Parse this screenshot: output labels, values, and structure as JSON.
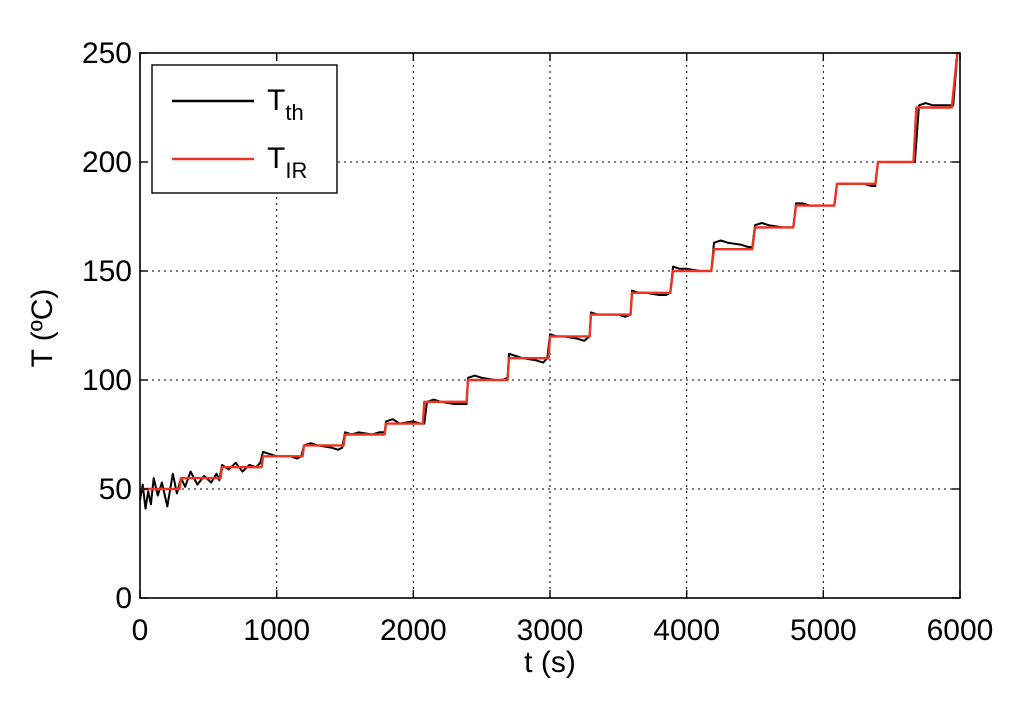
{
  "chart_data": {
    "type": "line",
    "title": "",
    "xlabel": "t (s)",
    "ylabel": "T (ºC)",
    "xlim": [
      0,
      6000
    ],
    "ylim": [
      0,
      250
    ],
    "x_ticks": [
      0,
      1000,
      2000,
      3000,
      4000,
      5000,
      6000
    ],
    "y_ticks": [
      0,
      50,
      100,
      150,
      200,
      250
    ],
    "x_tick_labels": [
      "0",
      "1000",
      "2000",
      "3000",
      "4000",
      "5000",
      "6000"
    ],
    "y_tick_labels": [
      "0",
      "50",
      "100",
      "150",
      "200",
      "250"
    ],
    "grid": true,
    "legend_position": "top-left",
    "series": [
      {
        "name": "Tth",
        "legend_main": "T",
        "legend_sub": "th",
        "color": "#000000",
        "x": [
          0,
          20,
          40,
          60,
          80,
          100,
          130,
          160,
          200,
          240,
          270,
          300,
          330,
          370,
          420,
          470,
          520,
          560,
          580,
          600,
          650,
          700,
          750,
          800,
          850,
          880,
          900,
          950,
          1000,
          1100,
          1150,
          1180,
          1200,
          1250,
          1300,
          1400,
          1450,
          1480,
          1500,
          1550,
          1600,
          1700,
          1750,
          1790,
          1800,
          1850,
          1900,
          2000,
          2050,
          2080,
          2100,
          2150,
          2200,
          2300,
          2350,
          2390,
          2400,
          2450,
          2500,
          2600,
          2650,
          2690,
          2700,
          2750,
          2800,
          2900,
          2950,
          2980,
          3000,
          3050,
          3100,
          3200,
          3250,
          3290,
          3300,
          3350,
          3400,
          3500,
          3550,
          3590,
          3600,
          3650,
          3700,
          3800,
          3850,
          3880,
          3900,
          3950,
          4000,
          4100,
          4150,
          4180,
          4200,
          4250,
          4300,
          4400,
          4450,
          4480,
          4500,
          4550,
          4600,
          4700,
          4750,
          4780,
          4800,
          4850,
          4900,
          5000,
          5050,
          5080,
          5100,
          5150,
          5200,
          5300,
          5350,
          5380,
          5400,
          5450,
          5500,
          5600,
          5650,
          5670,
          5700,
          5750,
          5800,
          5900,
          5920,
          5950,
          5980
        ],
        "y": [
          45,
          52,
          41,
          49,
          43,
          55,
          47,
          53,
          42,
          57,
          48,
          55,
          51,
          58,
          52,
          56,
          53,
          57,
          54,
          61,
          59,
          62,
          58,
          61,
          60,
          62,
          67,
          66,
          65,
          65,
          64,
          65,
          70,
          71,
          70,
          69,
          68,
          69,
          76,
          75,
          76,
          75,
          76,
          76,
          81,
          82,
          80,
          81,
          80,
          80,
          90,
          91,
          90,
          89,
          89,
          89,
          101,
          102,
          101,
          100,
          100,
          101,
          112,
          111,
          110,
          109,
          108,
          110,
          121,
          120,
          120,
          119,
          118,
          120,
          131,
          130,
          130,
          130,
          129,
          130,
          141,
          140,
          140,
          139,
          139,
          140,
          152,
          151,
          151,
          150,
          150,
          150,
          163,
          164,
          163,
          162,
          161,
          161,
          171,
          172,
          171,
          170,
          170,
          170,
          181,
          181,
          180,
          180,
          180,
          180,
          190,
          190,
          190,
          190,
          189,
          189,
          200,
          200,
          200,
          200,
          200,
          200,
          226,
          227,
          226,
          226,
          226,
          226,
          249
        ]
      },
      {
        "name": "TIR",
        "legend_main": "T",
        "legend_sub": "IR",
        "color": "#ee3322",
        "x": [
          0,
          290,
          300,
          590,
          600,
          890,
          900,
          1190,
          1200,
          1490,
          1500,
          1790,
          1800,
          2070,
          2080,
          2390,
          2400,
          2690,
          2700,
          2990,
          3000,
          3290,
          3300,
          3590,
          3600,
          3880,
          3900,
          4180,
          4200,
          4480,
          4500,
          4780,
          4800,
          5080,
          5100,
          5380,
          5400,
          5660,
          5680,
          5940,
          5980
        ],
        "y": [
          50,
          50,
          55,
          55,
          60,
          60,
          65,
          65,
          70,
          70,
          75,
          75,
          80,
          80,
          90,
          90,
          100,
          100,
          110,
          110,
          120,
          120,
          130,
          130,
          140,
          140,
          150,
          150,
          160,
          160,
          170,
          170,
          180,
          180,
          190,
          190,
          200,
          200,
          225,
          225,
          250
        ]
      }
    ]
  }
}
